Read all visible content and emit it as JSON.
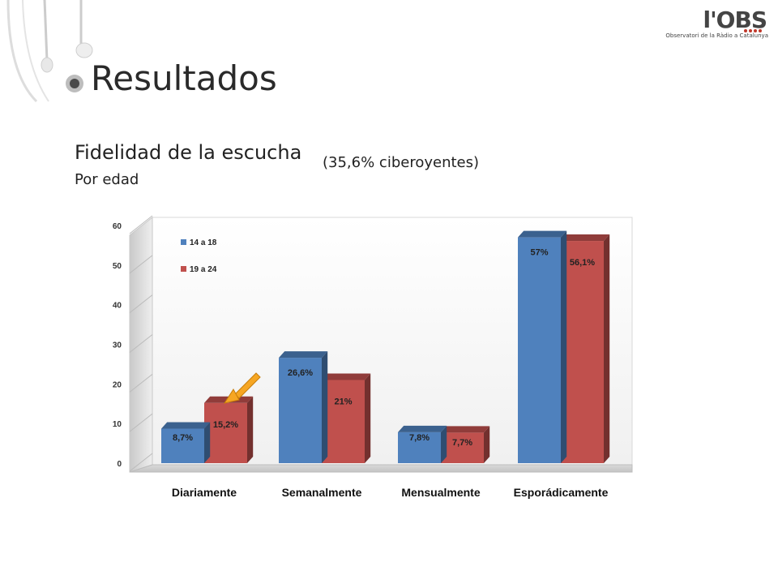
{
  "slide": {
    "title": "Resultados",
    "subtitle": "Fidelidad de la escucha",
    "subtitle_note": "(35,6% ciberoyentes)",
    "group_label": "Por edad"
  },
  "logo": {
    "text": "l'OBS",
    "subtext": "Observatori de la Ràdio a Catalunya",
    "dots_color": "#c0392b"
  },
  "colors": {
    "series1": "#4f81bd",
    "series2": "#c0504d"
  },
  "chart_data": {
    "type": "bar",
    "categories": [
      "Diariamente",
      "Semanalmente",
      "Mensualmente",
      "Esporádicamente"
    ],
    "series": [
      {
        "name": "14 a 18",
        "values": [
          8.7,
          26.6,
          7.8,
          57
        ],
        "labels": [
          "8,7%",
          "26,6%",
          "7,8%",
          "57%"
        ]
      },
      {
        "name": "19 a 24",
        "values": [
          15.2,
          21,
          7.7,
          56.1
        ],
        "labels": [
          "15,2%",
          "21%",
          "7,7%",
          "56,1%"
        ]
      }
    ],
    "ylim": [
      0,
      60
    ],
    "yticks": [
      "0",
      "10",
      "20",
      "30",
      "40",
      "50",
      "60"
    ],
    "legend_position": "top-left",
    "grid": false,
    "highlight": "arrow pointing to 15,2%"
  }
}
